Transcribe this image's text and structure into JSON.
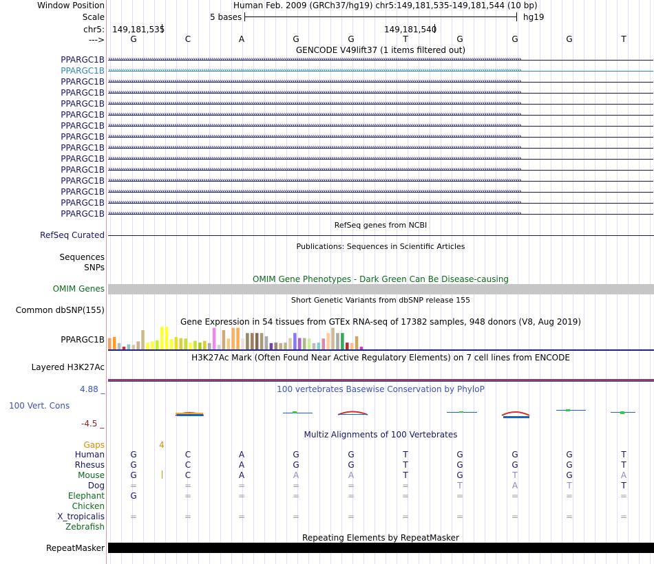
{
  "header": {
    "window_position_label": "Window Position",
    "scale_label": "Scale",
    "chr_label": "chr5:",
    "strand_label": "--->",
    "assembly_title": "Human Feb. 2009 (GRCh37/hg19)   chr5:149,181,535-149,181,544 (10 bp)",
    "scale_text": "5 bases",
    "db_label": "hg19",
    "coord_left": "149,181,535",
    "coord_right": "149,181,540"
  },
  "sequence": [
    "G",
    "C",
    "A",
    "G",
    "G",
    "T",
    "G",
    "G",
    "G",
    "T"
  ],
  "gencode": {
    "title": "GENCODE V49lift37 (1 items filtered out)",
    "labels": [
      "PPARGC1B",
      "PPARGC1B",
      "PPARGC1B",
      "PPARGC1B",
      "PPARGC1B",
      "PPARGC1B",
      "PPARGC1B",
      "PPARGC1B",
      "PPARGC1B",
      "PPARGC1B",
      "PPARGC1B",
      "PPARGC1B",
      "PPARGC1B",
      "PPARGC1B",
      "PPARGC1B"
    ],
    "color": "#141464",
    "highlight_color": "#2e86b8"
  },
  "refseq": {
    "title": "RefSeq genes from NCBI",
    "label": "RefSeq Curated"
  },
  "publications": {
    "title": "Publications: Sequences in Scientific Articles",
    "label_1": "Sequences",
    "label_2": "SNPs"
  },
  "omim": {
    "title": "OMIM Gene Phenotypes - Dark Green Can Be Disease-causing",
    "label": "OMIM Genes",
    "color": "#0b6b1c"
  },
  "dbsnp": {
    "title": "Short Genetic Variants from dbSNP release 155",
    "label": "Common dbSNP(155)"
  },
  "gtex": {
    "title": "Gene Expression in 54 tissues from GTEx RNA-seq of 17382 samples, 948 donors (V8, Aug 2019)",
    "label": "PPARGC1B",
    "values": [
      0.5,
      0.55,
      0.28,
      0.12,
      0.22,
      0.2,
      0.35,
      0.85,
      0.3,
      0.35,
      0.4,
      1.0,
      1.0,
      0.45,
      0.55,
      0.5,
      0.48,
      0.3,
      0.38,
      0.3,
      0.38,
      0.28,
      0.95,
      0.2,
      0.85,
      0.48,
      0.95,
      0.95,
      0.48,
      0.72,
      0.72,
      0.72,
      0.72,
      0.58,
      0.28,
      0.3,
      0.28,
      0.3,
      0.5,
      0.72,
      0.5,
      0.5,
      0.48,
      0.28,
      0.3,
      0.48,
      0.72,
      0.95,
      0.72,
      0.72,
      0.3,
      0.28,
      0.58,
      0.12
    ],
    "colors": [
      "#f4a261",
      "#ff9933",
      "#bbbbbb",
      "#cc3333",
      "#99bbcc",
      "#d4c8a0",
      "#d0b090",
      "#ccbb88",
      "#ffff33",
      "#ffff33",
      "#ccee22",
      "#ffff33",
      "#ffff33",
      "#ffff33",
      "#eedd22",
      "#ddcc44",
      "#ccdd33",
      "#ffff33",
      "#ccdd33",
      "#aacc22",
      "#ddcc33",
      "#aaaaaa",
      "#ee88ee",
      "#ccccdd",
      "#ccaa77",
      "#eecc88",
      "#ffb066",
      "#ffaa55",
      "#eedddd",
      "#998866",
      "#a08060",
      "#886655",
      "#aa9977",
      "#aaaaaa",
      "#774499",
      "#998877",
      "#ccaa88",
      "#bbbb88",
      "#ddccaa",
      "#8877ee",
      "#aa66cc",
      "#aabb88",
      "#ccee99",
      "#bbbbbb",
      "#88cccc",
      "#dd88aa",
      "#ffcc99",
      "#ccbb99",
      "#aaaaaa",
      "#33aa55",
      "#aa3333",
      "#ffbb88",
      "#ccaa66",
      "#cc44cc"
    ],
    "baseline_color": "#1a237e"
  },
  "h3k27ac": {
    "title": "H3K27Ac Mark (Often Found Near Active Regulatory Elements) on 7 cell lines from ENCODE",
    "label": "Layered H3K27Ac"
  },
  "phylop": {
    "title": "100 vertebrates Basewise Conservation by PhyloP",
    "label": "100 Vert. Cons",
    "max_label": "4.88 _",
    "min_label": "-4.5 _",
    "color": "#3f51b5"
  },
  "multiz": {
    "title": "Multiz Alignments of 100 Vertebrates",
    "gaps_label": "Gaps",
    "gaps_value": "4",
    "species": [
      {
        "name": "Human",
        "bases": [
          "G",
          "C",
          "A",
          "G",
          "G",
          "T",
          "G",
          "G",
          "G",
          "T"
        ]
      },
      {
        "name": "Rhesus",
        "bases": [
          "G",
          "C",
          "A",
          "G",
          "G",
          "T",
          "G",
          "G",
          "G",
          "T"
        ]
      },
      {
        "name": "Mouse",
        "bases": [
          "G",
          "C",
          "A",
          "A",
          "A",
          "T",
          "G",
          "T",
          "G",
          "A"
        ]
      },
      {
        "name": "Dog",
        "bases": [
          "=",
          "=",
          "=",
          "=",
          "=",
          "=",
          "T",
          "A",
          "T",
          "T"
        ]
      },
      {
        "name": "Elephant",
        "bases": [
          "G",
          "=",
          "=",
          "=",
          "=",
          "=",
          "=",
          "=",
          "=",
          "="
        ]
      },
      {
        "name": "Chicken",
        "bases": [
          "",
          "",
          "",
          "",
          "",
          "",
          "",
          "",
          "",
          ""
        ]
      },
      {
        "name": "X_tropicalis",
        "bases": [
          "=",
          "=",
          "=",
          "=",
          "=",
          "=",
          "=",
          "=",
          "=",
          "="
        ]
      },
      {
        "name": "Zebrafish",
        "bases": [
          "",
          "",
          "",
          "",
          "",
          "",
          "",
          "",
          "",
          ""
        ]
      }
    ]
  },
  "repeatmasker": {
    "title": "Repeating Elements by RepeatMasker",
    "label": "RepeatMasker"
  }
}
